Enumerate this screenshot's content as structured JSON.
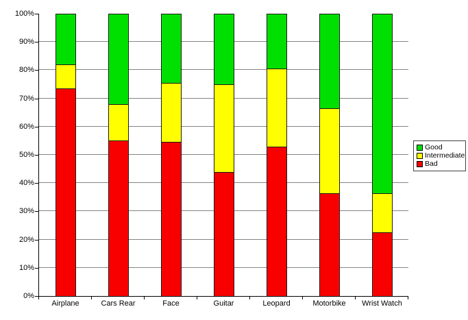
{
  "chart_data": {
    "type": "bar",
    "stacked": true,
    "stacked_mode": "percent",
    "title": "",
    "xlabel": "",
    "ylabel": "",
    "categories": [
      "Airplane",
      "Cars Rear",
      "Face",
      "Guitar",
      "Leopard",
      "Motorbike",
      "Wrist Watch"
    ],
    "series": [
      {
        "name": "Bad",
        "color": "#f80000",
        "values": [
          73.5,
          55.0,
          54.5,
          44.0,
          53.0,
          36.5,
          22.5
        ]
      },
      {
        "name": "Intermediate",
        "color": "#ffff00",
        "values": [
          8.5,
          13.0,
          21.0,
          31.0,
          27.5,
          30.0,
          14.0
        ]
      },
      {
        "name": "Good",
        "color": "#00e000",
        "values": [
          18.0,
          32.0,
          24.5,
          25.0,
          19.5,
          33.5,
          63.5
        ]
      }
    ],
    "y_axis": {
      "min": 0,
      "max": 100,
      "tick_step": 10,
      "tick_labels": [
        "0%",
        "10%",
        "20%",
        "30%",
        "40%",
        "50%",
        "60%",
        "70%",
        "80%",
        "90%",
        "100%"
      ]
    },
    "legend": {
      "position": "right",
      "entries": [
        {
          "label": "Good",
          "color": "#00e000"
        },
        {
          "label": "Intermediate",
          "color": "#ffff00"
        },
        {
          "label": "Bad",
          "color": "#f80000"
        }
      ]
    },
    "grid": "horizontal",
    "colors": {
      "background": "#ffffff",
      "gridline": "#848484",
      "axis": "#000000",
      "bar_border": "#1a1a1a",
      "text": "#000000"
    }
  }
}
